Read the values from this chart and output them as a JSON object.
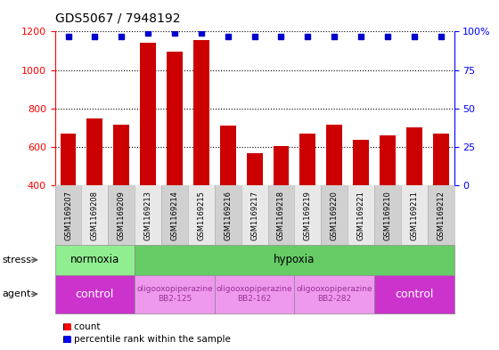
{
  "title": "GDS5067 / 7948192",
  "samples": [
    "GSM1169207",
    "GSM1169208",
    "GSM1169209",
    "GSM1169213",
    "GSM1169214",
    "GSM1169215",
    "GSM1169216",
    "GSM1169217",
    "GSM1169218",
    "GSM1169219",
    "GSM1169220",
    "GSM1169221",
    "GSM1169210",
    "GSM1169211",
    "GSM1169212"
  ],
  "counts": [
    670,
    750,
    715,
    1140,
    1095,
    1155,
    710,
    570,
    605,
    670,
    715,
    635,
    660,
    700,
    670
  ],
  "percentiles": [
    97,
    97,
    97,
    99,
    99,
    99,
    97,
    97,
    97,
    97,
    97,
    97,
    97,
    97,
    97
  ],
  "bar_color": "#cc0000",
  "dot_color": "#0000cc",
  "ylim_left": [
    400,
    1200
  ],
  "ylim_right": [
    0,
    100
  ],
  "yticks_left": [
    400,
    600,
    800,
    1000,
    1200
  ],
  "yticks_right": [
    0,
    25,
    50,
    75,
    100
  ],
  "stress_groups": [
    {
      "label": "normoxia",
      "start": 0,
      "end": 3,
      "color": "#90ee90"
    },
    {
      "label": "hypoxia",
      "start": 3,
      "end": 15,
      "color": "#66cc66"
    }
  ],
  "agent_groups": [
    {
      "label": "control",
      "start": 0,
      "end": 3,
      "color": "#cc33cc",
      "text_color": "#ffffff",
      "fontsize": 9
    },
    {
      "label": "oligooxopiperazine\nBB2-125",
      "start": 3,
      "end": 6,
      "color": "#ee99ee",
      "text_color": "#993399",
      "fontsize": 6.5
    },
    {
      "label": "oligooxopiperazine\nBB2-162",
      "start": 6,
      "end": 9,
      "color": "#ee99ee",
      "text_color": "#993399",
      "fontsize": 6.5
    },
    {
      "label": "oligooxopiperazine\nBB2-282",
      "start": 9,
      "end": 12,
      "color": "#ee99ee",
      "text_color": "#993399",
      "fontsize": 6.5
    },
    {
      "label": "control",
      "start": 12,
      "end": 15,
      "color": "#cc33cc",
      "text_color": "#ffffff",
      "fontsize": 9
    }
  ],
  "stress_label": "stress",
  "agent_label": "agent",
  "legend_count_label": "count",
  "legend_pct_label": "percentile rank within the sample",
  "bar_width": 0.6,
  "tick_bg_colors": [
    "#d0d0d0",
    "#e8e8e8"
  ]
}
